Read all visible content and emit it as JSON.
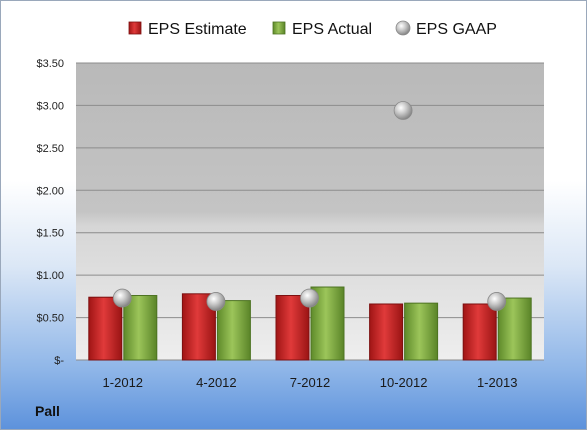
{
  "company": "Pall",
  "chart_data": {
    "type": "bar",
    "categories": [
      "1-2012",
      "4-2012",
      "7-2012",
      "10-2012",
      "1-2013"
    ],
    "series": [
      {
        "name": "EPS Estimate",
        "type": "bar",
        "color": "#cc2222",
        "values": [
          0.74,
          0.78,
          0.76,
          0.66,
          0.66
        ]
      },
      {
        "name": "EPS Actual",
        "type": "bar",
        "color": "#77a33a",
        "values": [
          0.76,
          0.7,
          0.86,
          0.67,
          0.73
        ]
      },
      {
        "name": "EPS GAAP",
        "type": "scatter",
        "color": "#a8a8a8",
        "values": [
          0.73,
          0.69,
          0.73,
          2.94,
          0.69
        ]
      }
    ],
    "yticks": [
      "$-",
      "$0.50",
      "$1.00",
      "$1.50",
      "$2.00",
      "$2.50",
      "$3.00",
      "$3.50"
    ],
    "ylim": [
      0,
      3.5
    ],
    "grid": true,
    "legend": "top"
  }
}
